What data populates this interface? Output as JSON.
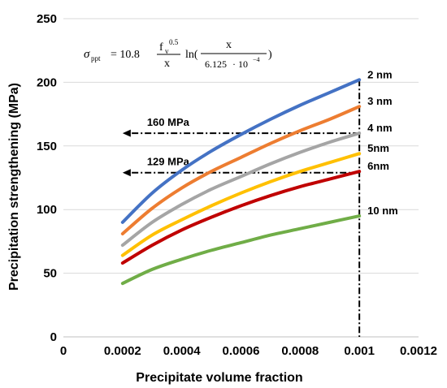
{
  "chart_data": {
    "type": "line",
    "title": "",
    "xlabel": "Precipitate volume fraction",
    "ylabel": "Precipitation strengthening (MPa)",
    "xlim": [
      0,
      0.0012
    ],
    "ylim": [
      0,
      250
    ],
    "x_ticks": [
      "0",
      "0.0002",
      "0.0004",
      "0.0006",
      "0.0008",
      "0.001",
      "0.0012"
    ],
    "y_ticks": [
      "0",
      "50",
      "100",
      "150",
      "200",
      "250"
    ],
    "grid": "horizontal",
    "x": [
      0.0002,
      0.0003,
      0.0004,
      0.0005,
      0.0006,
      0.0007,
      0.0008,
      0.0009,
      0.001
    ],
    "series": [
      {
        "name": "2 nm",
        "color": "#4472C4",
        "values": [
          90,
          113,
          131,
          146,
          159,
          171,
          182,
          192,
          202
        ]
      },
      {
        "name": "3 nm",
        "color": "#ED7D31",
        "values": [
          81,
          101,
          117,
          130,
          141,
          152,
          162,
          171,
          181
        ]
      },
      {
        "name": "4 nm",
        "color": "#A5A5A5",
        "values": [
          72,
          90,
          104,
          116,
          126,
          136,
          145,
          153,
          160
        ]
      },
      {
        "name": "5nm",
        "color": "#FFC000",
        "values": [
          64,
          80,
          92,
          103,
          113,
          122,
          130,
          137,
          144
        ]
      },
      {
        "name": "6nm",
        "color": "#C00000",
        "values": [
          58,
          72,
          84,
          94,
          103,
          111,
          118,
          124,
          130
        ]
      },
      {
        "name": "10 nm",
        "color": "#70AD47",
        "values": [
          42,
          53,
          61,
          68,
          74,
          80,
          85,
          90,
          95
        ]
      }
    ],
    "annotations": [
      {
        "label": "160 MPa",
        "y": 160,
        "x_from": 0.0002,
        "x_to": 0.001
      },
      {
        "label": "129 MPa",
        "y": 129,
        "x_from": 0.0002,
        "x_to": 0.001
      }
    ],
    "vertical_marker": {
      "x": 0.001,
      "y_top": 202
    },
    "equation": {
      "lhs": "σ",
      "lhs_sub": "ppt",
      "eq_coef": "= 10.8",
      "f": "f",
      "f_sub": "v",
      "f_sup": "0.5",
      "x_den": "x",
      "ln": "ln(",
      "frac_num": "x",
      "frac_den_a": "6.125",
      "frac_den_b": "· 10",
      "frac_den_exp": "−4",
      "close": ")"
    }
  }
}
